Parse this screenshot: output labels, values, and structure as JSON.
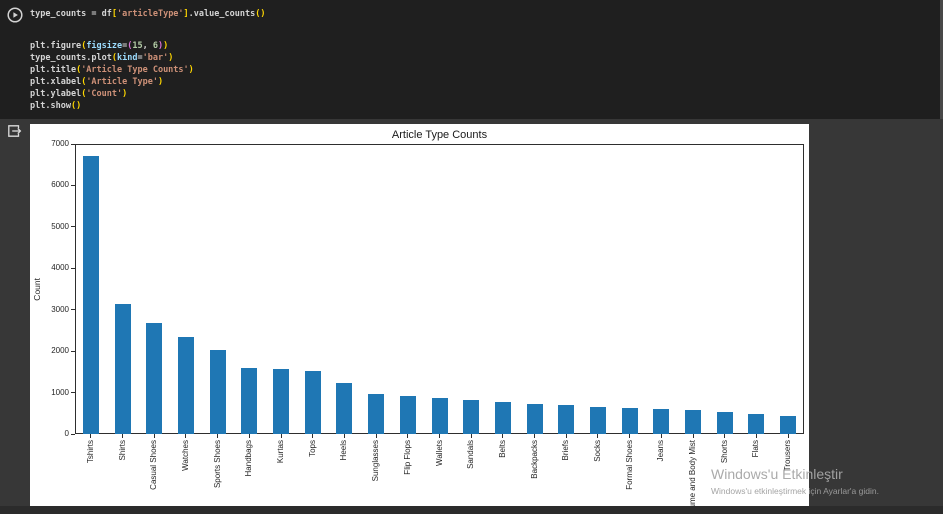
{
  "code": {
    "line1": [
      [
        "plain",
        "type_counts = df"
      ],
      [
        "bracket",
        "["
      ],
      [
        "string",
        "'articleType'"
      ],
      [
        "bracket",
        "]"
      ],
      [
        "plain",
        ".value_counts"
      ],
      [
        "bracket",
        "("
      ],
      [
        "bracket",
        ")"
      ]
    ],
    "block": [
      [
        [
          "plain",
          "plt.figure"
        ],
        [
          "bracket",
          "("
        ],
        [
          "param",
          "figsize"
        ],
        [
          "plain",
          "="
        ],
        [
          "paren2",
          "("
        ],
        [
          "num",
          "15"
        ],
        [
          "plain",
          ", "
        ],
        [
          "num",
          "6"
        ],
        [
          "paren2",
          ")"
        ],
        [
          "bracket",
          ")"
        ]
      ],
      [
        [
          "plain",
          "type_counts.plot"
        ],
        [
          "bracket",
          "("
        ],
        [
          "param",
          "kind"
        ],
        [
          "plain",
          "="
        ],
        [
          "string",
          "'bar'"
        ],
        [
          "bracket",
          ")"
        ]
      ],
      [
        [
          "plain",
          "plt.title"
        ],
        [
          "bracket",
          "("
        ],
        [
          "string",
          "'Article Type Counts'"
        ],
        [
          "bracket",
          ")"
        ]
      ],
      [
        [
          "plain",
          "plt.xlabel"
        ],
        [
          "bracket",
          "("
        ],
        [
          "string",
          "'Article Type'"
        ],
        [
          "bracket",
          ")"
        ]
      ],
      [
        [
          "plain",
          "plt.ylabel"
        ],
        [
          "bracket",
          "("
        ],
        [
          "string",
          "'Count'"
        ],
        [
          "bracket",
          ")"
        ]
      ],
      [
        [
          "plain",
          "plt.show"
        ],
        [
          "bracket",
          "("
        ],
        [
          "bracket",
          ")"
        ]
      ]
    ]
  },
  "icons": {
    "run_button": "play-circle-icon",
    "output_gutter": "goto-output-icon"
  },
  "chart_data": {
    "type": "bar",
    "title": "Article Type Counts",
    "ylabel": "Count",
    "xlabel": "",
    "ylim": [
      0,
      7000
    ],
    "yticks": [
      0,
      1000,
      2000,
      3000,
      4000,
      5000,
      6000,
      7000
    ],
    "grid": false,
    "legend": null,
    "bar_color": "#1f77b4",
    "categories": [
      "Tshirts",
      "Shirts",
      "Casual Shoes",
      "Watches",
      "Sports Shoes",
      "Handbags",
      "Kurtas",
      "Tops",
      "Heels",
      "Sunglasses",
      "Flip Flops",
      "Wallets",
      "Sandals",
      "Belts",
      "Backpacks",
      "Briefs",
      "Socks",
      "Formal Shoes",
      "Jeans",
      "Perfume and Body Mist",
      "Shorts",
      "Flats",
      "Trousers"
    ],
    "values": [
      6700,
      3130,
      2690,
      2330,
      2020,
      1600,
      1565,
      1525,
      1220,
      975,
      925,
      880,
      830,
      780,
      725,
      700,
      655,
      630,
      605,
      590,
      530,
      485,
      425
    ]
  },
  "watermark": {
    "line1": "Windows'u Etkinleştir",
    "line2": "Windows'u etkinleştirmek için Ayarlar'a gidin."
  }
}
